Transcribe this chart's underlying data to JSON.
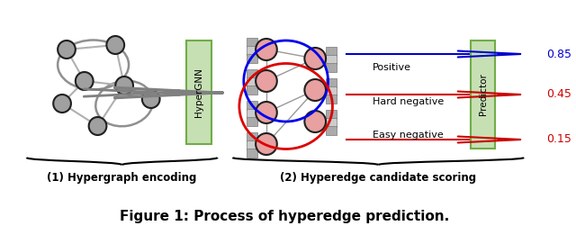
{
  "bg_color": "#ffffff",
  "title": "Figure 1: Process of hyperedge prediction.",
  "title_fontsize": 11,
  "title_fontstyle": "bold",
  "label1": "(1) Hypergraph encoding",
  "label2": "(2) Hyperedge candidate scoring",
  "label_fontsize": 9,
  "hypergnn_label": "HyperGNN",
  "predictor_label": "Predictor",
  "box_color": "#c6e0b4",
  "box_edge_color": "#70ad47",
  "node_color_graph": "#a0a0a0",
  "node_edge_color_graph": "#202020",
  "node_color_embed": "#e8a0a0",
  "node_edge_color_embed": "#202020",
  "embed_box_color": "#909090",
  "arrow_gray": "#808080",
  "line_blue": "#0000cc",
  "line_red": "#cc0000",
  "scores": [
    "0.85",
    "0.45",
    "0.15"
  ],
  "labels": [
    "Positive",
    "Hard negative",
    "Easy negative"
  ],
  "hyperedge_curve_color_blue": "#0000ee",
  "hyperedge_curve_color_red": "#dd0000"
}
